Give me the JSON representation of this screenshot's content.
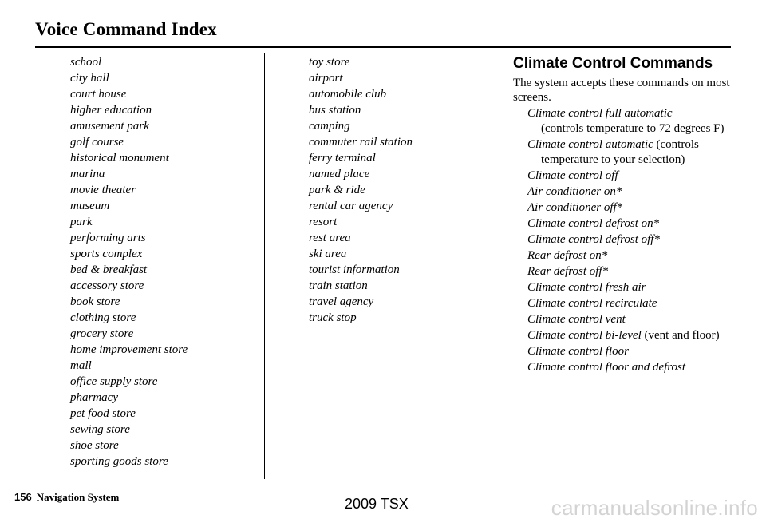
{
  "header": {
    "title": "Voice Command Index"
  },
  "columns": {
    "left": [
      "school",
      "city hall",
      "court house",
      "higher education",
      "amusement park",
      "golf course",
      "historical monument",
      "marina",
      "movie theater",
      "museum",
      "park",
      "performing arts",
      "sports complex",
      "bed & breakfast",
      "accessory store",
      "book store",
      "clothing store",
      "grocery store",
      "home improvement store",
      "mall",
      "office supply store",
      "pharmacy",
      "pet food store",
      "sewing store",
      "shoe store",
      "sporting goods store"
    ],
    "middle": [
      "toy store",
      "airport",
      "automobile club",
      "bus station",
      "camping",
      "commuter rail station",
      "ferry terminal",
      "named place",
      "park & ride",
      "rental car agency",
      "resort",
      "rest area",
      "ski area",
      "tourist information",
      "train station",
      "travel agency",
      "truck stop"
    ]
  },
  "climate": {
    "title": "Climate Control Commands",
    "intro": "The system accepts these commands on most screens.",
    "commands": [
      {
        "cmd": "Climate control full automatic",
        "note": "(controls temperature to 72 degrees F)",
        "sep": "\n"
      },
      {
        "cmd": "Climate control automatic",
        "note": "(controls temperature to your selection)",
        "sep": " "
      },
      {
        "cmd": "Climate control off",
        "note": "",
        "sep": ""
      },
      {
        "cmd": "Air conditioner on*",
        "note": "",
        "sep": ""
      },
      {
        "cmd": "Air conditioner off*",
        "note": "",
        "sep": ""
      },
      {
        "cmd": "Climate control defrost on*",
        "note": "",
        "sep": ""
      },
      {
        "cmd": "Climate control defrost off*",
        "note": "",
        "sep": ""
      },
      {
        "cmd": "Rear defrost on*",
        "note": "",
        "sep": ""
      },
      {
        "cmd": "Rear defrost off*",
        "note": "",
        "sep": ""
      },
      {
        "cmd": "Climate control fresh air",
        "note": "",
        "sep": ""
      },
      {
        "cmd": "Climate control recirculate",
        "note": "",
        "sep": ""
      },
      {
        "cmd": "Climate control vent",
        "note": "",
        "sep": ""
      },
      {
        "cmd": "Climate control bi-level",
        "note": "(vent and floor)",
        "sep": " "
      },
      {
        "cmd": "Climate control floor",
        "note": "",
        "sep": ""
      },
      {
        "cmd": "Climate control floor and defrost",
        "note": "",
        "sep": ""
      }
    ]
  },
  "footer": {
    "page_number": "156",
    "label": "Navigation System"
  },
  "watermark": {
    "model": "2009  TSX",
    "site": "carmanualsonline.info"
  }
}
